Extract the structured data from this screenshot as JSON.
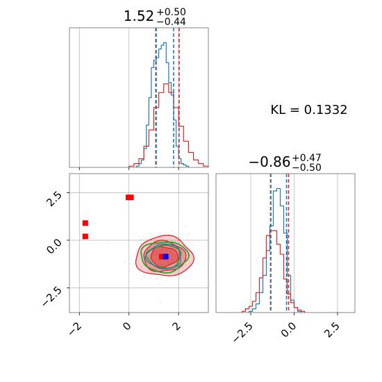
{
  "kl_text": "KL = 0.1332",
  "colors": {
    "series_a": "#1f77b4",
    "series_b": "#d62728",
    "contour_green": "#2ca02c",
    "truth": "#0000ff",
    "outlier": "#ff0000",
    "median_line": "#7b3d6d",
    "grid": "#b0b0b0",
    "axes": "#777777"
  },
  "chart_data": [
    {
      "type": "histogram",
      "panel": "top-left",
      "title": {
        "main": "1.52",
        "sup": "+0.50",
        "sub": "−0.44"
      },
      "xlim": [
        -2.4,
        3.2
      ],
      "grid": true,
      "series": [
        {
          "color": "#1f77b4",
          "edges": [
            0.3,
            0.4,
            0.5,
            0.6,
            0.7,
            0.8,
            0.9,
            1.0,
            1.1,
            1.2,
            1.3,
            1.4,
            1.5,
            1.6,
            1.7,
            1.8,
            1.9,
            2.0,
            2.1,
            2.2,
            2.3,
            2.4
          ],
          "values": [
            0.01,
            0.03,
            0.06,
            0.15,
            0.34,
            0.56,
            0.8,
            0.86,
            0.88,
            0.95,
            0.98,
            1.0,
            0.84,
            0.68,
            0.58,
            0.38,
            0.17,
            0.07,
            0.03,
            0.02,
            0.01
          ]
        },
        {
          "color": "#d62728",
          "edges": [
            0.0,
            0.2,
            0.4,
            0.6,
            0.8,
            1.0,
            1.2,
            1.4,
            1.6,
            1.8,
            2.0,
            2.2,
            2.4,
            2.6,
            2.8,
            3.0,
            3.2
          ],
          "values": [
            0.01,
            0.03,
            0.07,
            0.17,
            0.3,
            0.48,
            0.6,
            0.67,
            0.6,
            0.48,
            0.33,
            0.21,
            0.12,
            0.06,
            0.03,
            0.01
          ]
        }
      ],
      "quantile_lines": [
        {
          "x": 1.08,
          "color": "#d62728"
        },
        {
          "x": 1.1,
          "color": "#1f77b4"
        },
        {
          "x": 1.8,
          "color": "#1f77b4"
        },
        {
          "x": 2.02,
          "color": "#d62728"
        }
      ]
    },
    {
      "type": "scatter",
      "panel": "bottom-left",
      "xlim": [
        -2.4,
        3.2
      ],
      "ylim": [
        -3.8,
        3.5
      ],
      "grid": true,
      "x_ticks": [
        -2,
        0,
        2
      ],
      "x_tick_labels": [
        "−2",
        "0",
        "2"
      ],
      "y_ticks": [
        -2.5,
        0.0,
        2.5
      ],
      "y_tick_labels": [
        "−2.5",
        "0.0",
        "2.5"
      ],
      "center": {
        "x": 1.42,
        "y": -0.86
      },
      "contours": [
        {
          "color": "#d62728",
          "rx": 1.15,
          "ry": 1.05,
          "fill": "rgba(214,39,40,0.22)"
        },
        {
          "color": "#d62728",
          "rx": 0.85,
          "ry": 0.8,
          "fill": "rgba(214,39,40,0.32)"
        },
        {
          "color": "#d62728",
          "rx": 0.55,
          "ry": 0.52,
          "fill": "rgba(214,39,40,0.45)"
        },
        {
          "color": "#2ca02c",
          "rx": 0.95,
          "ry": 0.8,
          "fill": "none"
        },
        {
          "color": "#2ca02c",
          "rx": 0.68,
          "ry": 0.6,
          "fill": "none"
        },
        {
          "color": "#1f77b4",
          "rx": 0.7,
          "ry": 0.65,
          "fill": "none"
        }
      ],
      "outliers": [
        {
          "x": -1.76,
          "y": 0.9
        },
        {
          "x": -1.76,
          "y": 0.2
        },
        {
          "x": -0.02,
          "y": 2.25
        },
        {
          "x": 0.08,
          "y": 2.25
        },
        {
          "x": 1.32,
          "y": -0.86
        }
      ],
      "truth_point": {
        "x": 1.48,
        "y": -0.86
      }
    },
    {
      "type": "histogram",
      "panel": "bottom-right",
      "title": {
        "main": "−0.86",
        "sup": "+0.47",
        "sub": "−0.50"
      },
      "xlim": [
        -4.5,
        3.5
      ],
      "grid": true,
      "x_ticks": [
        -2.5,
        0.0,
        2.5
      ],
      "x_tick_labels": [
        "−2.5",
        "0.0",
        "2.5"
      ],
      "series": [
        {
          "color": "#1f77b4",
          "edges": [
            -2.6,
            -2.4,
            -2.2,
            -2.0,
            -1.8,
            -1.6,
            -1.4,
            -1.2,
            -1.0,
            -0.8,
            -0.6,
            -0.4,
            -0.2,
            0.0,
            0.2,
            0.4
          ],
          "values": [
            0.01,
            0.03,
            0.07,
            0.16,
            0.3,
            0.5,
            0.7,
            0.98,
            1.0,
            0.86,
            0.64,
            0.3,
            0.1,
            0.04,
            0.01
          ]
        },
        {
          "color": "#d62728",
          "edges": [
            -3.0,
            -2.8,
            -2.6,
            -2.4,
            -2.2,
            -2.0,
            -1.8,
            -1.6,
            -1.4,
            -1.2,
            -1.0,
            -0.8,
            -0.6,
            -0.4,
            -0.2,
            0.0,
            0.2,
            0.4,
            0.6
          ],
          "values": [
            0.01,
            0.03,
            0.05,
            0.09,
            0.16,
            0.28,
            0.44,
            0.62,
            0.66,
            0.66,
            0.55,
            0.47,
            0.27,
            0.15,
            0.08,
            0.04,
            0.02,
            0.01
          ]
        }
      ],
      "quantile_lines": [
        {
          "x": -1.36,
          "color": "#d62728"
        },
        {
          "x": -1.34,
          "color": "#1f77b4"
        },
        {
          "x": -0.44,
          "color": "#1f77b4"
        },
        {
          "x": -0.32,
          "color": "#d62728"
        }
      ]
    }
  ]
}
